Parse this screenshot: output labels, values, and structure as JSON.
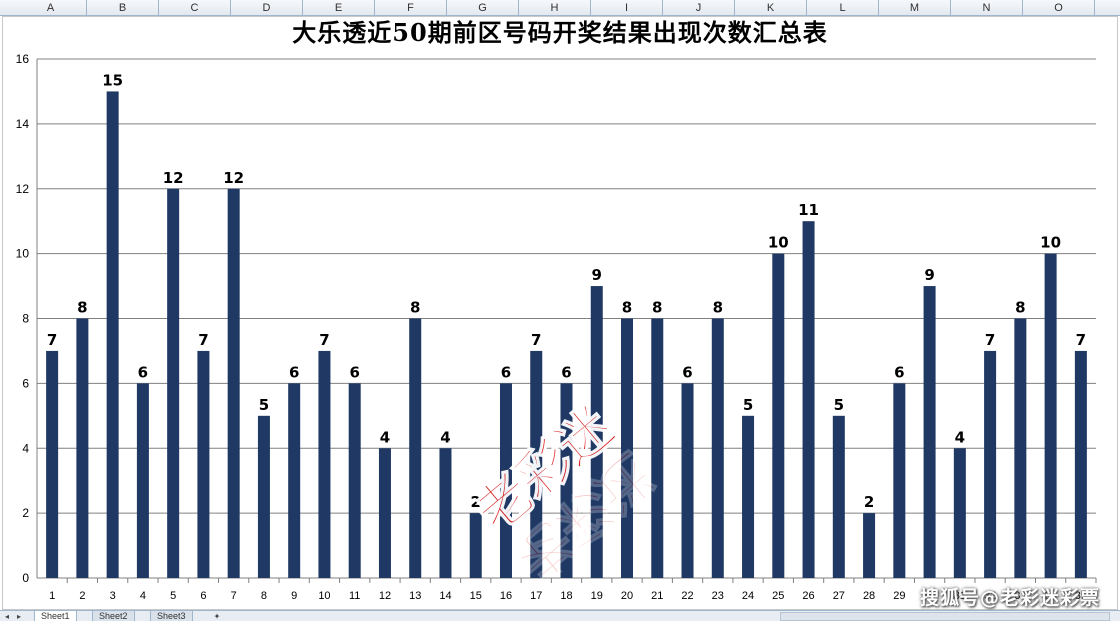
{
  "spreadsheet": {
    "columns": [
      "A",
      "B",
      "C",
      "D",
      "E",
      "F",
      "G",
      "H",
      "I",
      "J",
      "K",
      "L",
      "M",
      "N",
      "O"
    ],
    "sheets": [
      "Sheet1",
      "Sheet2",
      "Sheet3"
    ],
    "active_sheet": 0
  },
  "watermark_text": "搜狐号@老彩迷彩票",
  "overlay_logo_text": "老彩迷",
  "colors": {
    "bar": "#1f3864",
    "grid": "#808080",
    "label": "#000000"
  },
  "chart_data": {
    "type": "bar",
    "title": "大乐透近50期前区号码开奖结果出现次数汇总表",
    "xlabel": "",
    "ylabel": "",
    "ylim": [
      0,
      16
    ],
    "yticks": [
      0,
      2,
      4,
      6,
      8,
      10,
      12,
      14,
      16
    ],
    "grid": true,
    "categories": [
      "1",
      "2",
      "3",
      "4",
      "5",
      "6",
      "7",
      "8",
      "9",
      "10",
      "11",
      "12",
      "13",
      "14",
      "15",
      "16",
      "17",
      "18",
      "19",
      "20",
      "21",
      "22",
      "23",
      "24",
      "25",
      "26",
      "27",
      "28",
      "29",
      "30",
      "31",
      "32",
      "33",
      "34",
      "35"
    ],
    "values": [
      7,
      8,
      15,
      6,
      12,
      7,
      12,
      5,
      6,
      7,
      6,
      4,
      8,
      4,
      2,
      6,
      7,
      6,
      9,
      8,
      8,
      6,
      8,
      5,
      10,
      11,
      5,
      2,
      6,
      9,
      4,
      7,
      8,
      10,
      7
    ],
    "data_labels": [
      "7",
      "8",
      "15",
      "6",
      "12",
      "7",
      "12",
      "5",
      "6",
      "7",
      "6",
      "4",
      "8",
      "4",
      "2",
      "6",
      "7",
      "6",
      "9",
      "8",
      "8",
      "6",
      "8",
      "5",
      "10",
      "11",
      "5",
      "2",
      "6",
      "9",
      "4",
      "7",
      "8",
      "10",
      "7"
    ]
  }
}
